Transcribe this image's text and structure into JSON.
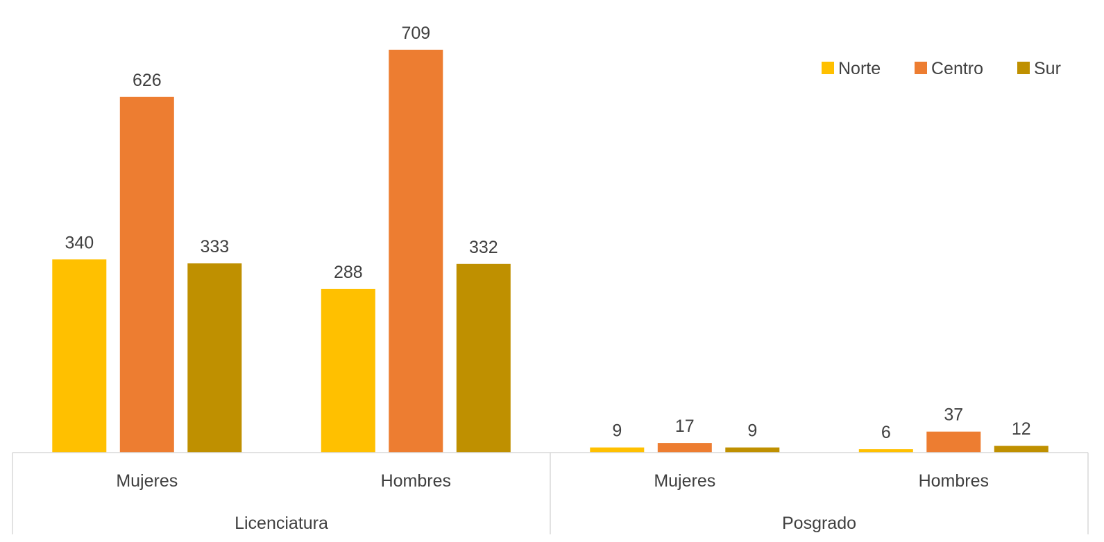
{
  "chart_data": {
    "type": "bar",
    "title": "",
    "xlabel": "",
    "ylabel": "",
    "ylim": [
      0,
      760
    ],
    "grid": false,
    "legend_position": "top-right",
    "groups": [
      {
        "label": "Licenciatura",
        "categories": [
          "Mujeres",
          "Hombres"
        ]
      },
      {
        "label": "Posgrado",
        "categories": [
          "Mujeres",
          "Hombres"
        ]
      }
    ],
    "categories": [
      "Mujeres",
      "Hombres",
      "Mujeres",
      "Hombres"
    ],
    "series": [
      {
        "name": "Norte",
        "color": "#FFC000",
        "values": [
          340,
          288,
          9,
          6
        ]
      },
      {
        "name": "Centro",
        "color": "#ED7D31",
        "values": [
          626,
          709,
          17,
          37
        ]
      },
      {
        "name": "Sur",
        "color": "#BF9000",
        "values": [
          333,
          332,
          9,
          12
        ]
      }
    ]
  }
}
